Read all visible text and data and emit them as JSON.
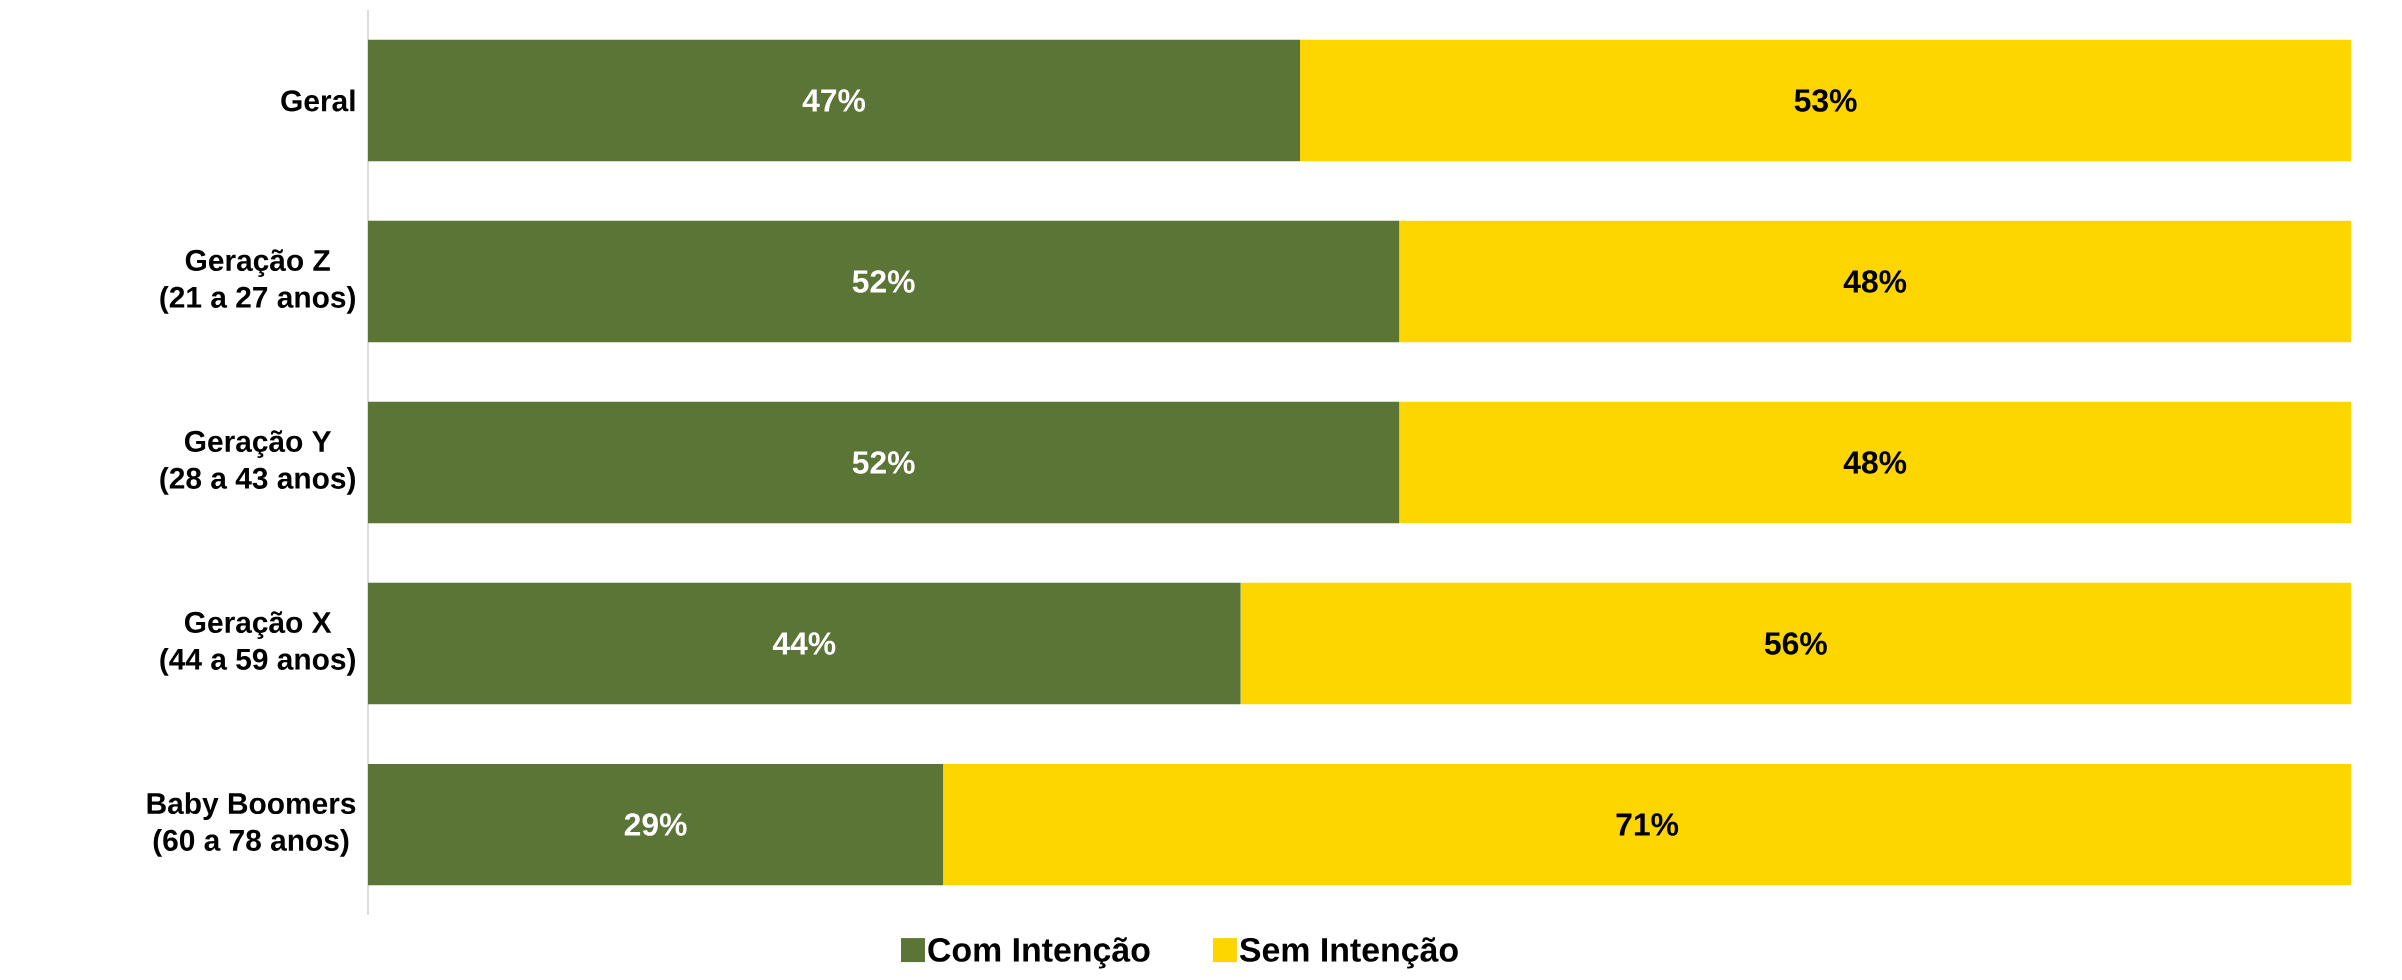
{
  "chart_data": {
    "type": "bar",
    "orientation": "horizontal",
    "stacked": true,
    "categories": [
      "Geral",
      "Geração Z\n(21 a 27 anos)",
      "Geração Y\n(28 a 43 anos)",
      "Geração X\n(44 a 59 anos)",
      "Baby Boomers\n(60 a 78 anos)"
    ],
    "series": [
      {
        "name": "Com Intenção",
        "color": "#5b7536",
        "values": [
          47,
          52,
          52,
          44,
          29
        ],
        "value_labels": [
          "47%",
          "52%",
          "52%",
          "44%",
          "29%"
        ]
      },
      {
        "name": "Sem Intenção",
        "color": "#fdd600",
        "values": [
          53,
          48,
          48,
          56,
          71
        ],
        "value_labels": [
          "53%",
          "48%",
          "48%",
          "56%",
          "71%"
        ]
      }
    ],
    "legend": "bottom"
  }
}
